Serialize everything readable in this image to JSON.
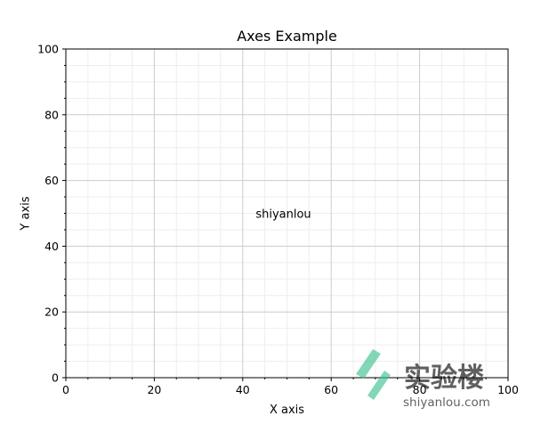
{
  "chart_data": {
    "type": "line",
    "title": "Axes Example",
    "xlabel": "X axis",
    "ylabel": "Y axis",
    "xlim": [
      0,
      100
    ],
    "ylim": [
      0,
      100
    ],
    "x_ticks": [
      0,
      20,
      40,
      60,
      80,
      100
    ],
    "y_ticks": [
      0,
      20,
      40,
      60,
      80,
      100
    ],
    "x_tick_labels": [
      "0",
      "20",
      "40",
      "60",
      "80",
      "100"
    ],
    "y_tick_labels": [
      "0",
      "20",
      "40",
      "60",
      "80",
      "100"
    ],
    "x_minor_step": 5,
    "y_minor_step": 5,
    "grid": true,
    "grid_major_color": "#cccccc",
    "grid_minor_color": "#eeeeee",
    "series": [],
    "annotations": [
      {
        "text": "shiyanlou",
        "x": 50,
        "y": 50
      }
    ]
  },
  "watermark": {
    "brand_text": "实验楼",
    "url_text": "shiyanlou.com",
    "color": "#36c08a",
    "icon": "shiyanlou-logo-icon"
  }
}
